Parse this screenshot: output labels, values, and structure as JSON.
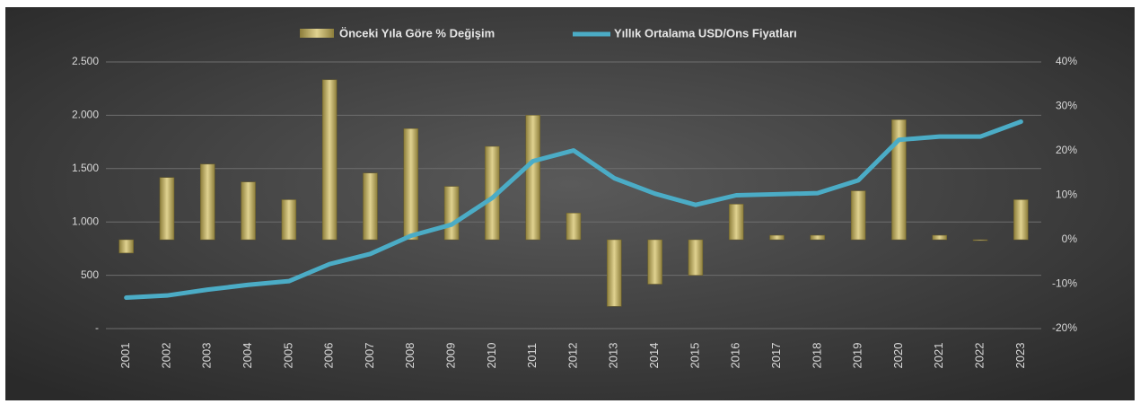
{
  "chart_data": {
    "type": "bar+line",
    "categories": [
      "2001",
      "2002",
      "2003",
      "2004",
      "2005",
      "2006",
      "2007",
      "2008",
      "2009",
      "2010",
      "2011",
      "2012",
      "2013",
      "2014",
      "2015",
      "2016",
      "2017",
      "2018",
      "2019",
      "2020",
      "2021",
      "2022",
      "2023"
    ],
    "series": [
      {
        "name": "Önceki Yıla Göre % Değişim",
        "type": "bar",
        "axis": "y2",
        "color": "#b5a55a",
        "values": [
          -3,
          14,
          17,
          13,
          9,
          36,
          15,
          25,
          12,
          21,
          28,
          6,
          -15,
          -10,
          -8,
          8,
          1,
          1,
          11,
          27,
          1,
          0,
          9
        ]
      },
      {
        "name": "Yıllık Ortalama USD/Ons Fiyatları",
        "type": "line",
        "axis": "y",
        "color": "#4bacc6",
        "values": [
          290,
          310,
          365,
          410,
          445,
          605,
          700,
          870,
          975,
          1225,
          1570,
          1670,
          1410,
          1265,
          1160,
          1250,
          1260,
          1270,
          1390,
          1770,
          1800,
          1800,
          1940
        ]
      }
    ],
    "ylim": [
      0,
      2500
    ],
    "yticks": [
      {
        "value": 0,
        "label": "-"
      },
      500,
      {
        "value": 1000,
        "label": "1.000"
      },
      {
        "value": 1500,
        "label": "1.500"
      },
      {
        "value": 2000,
        "label": "2.000"
      },
      {
        "value": 2500,
        "label": "2.500"
      }
    ],
    "y2lim": [
      -20,
      40
    ],
    "y2ticks": [
      {
        "value": -20,
        "label": "-20%"
      },
      {
        "value": -10,
        "label": "-10%"
      },
      {
        "value": 0,
        "label": "0%"
      },
      {
        "value": 10,
        "label": "10%"
      },
      {
        "value": 20,
        "label": "20%"
      },
      {
        "value": 30,
        "label": "30%"
      },
      {
        "value": 40,
        "label": "40%"
      }
    ],
    "grid": true,
    "legend": "top"
  }
}
